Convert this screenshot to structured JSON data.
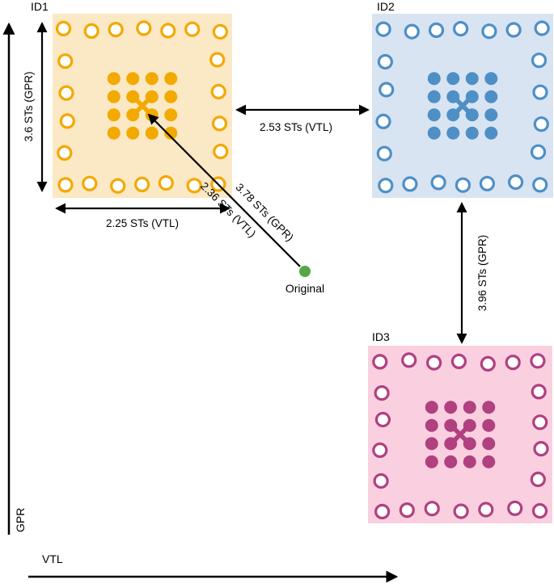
{
  "figure": {
    "axes": {
      "x_label": "VTL",
      "y_label": "GPR"
    },
    "clusters": [
      {
        "label": "ID1",
        "color": "#F2A900",
        "bg": "#FBE8C4"
      },
      {
        "label": "ID2",
        "color": "#4E8FC6",
        "bg": "#D8E4F1"
      },
      {
        "label": "ID3",
        "color": "#B04080",
        "bg": "#FAD0E0"
      }
    ],
    "original": {
      "label": "Original",
      "color": "#55A845"
    },
    "distances": {
      "id1_height": "3.6 STs (GPR)",
      "id1_width": "2.25 STs (VTL)",
      "id1_id2": "2.53 STs (VTL)",
      "id2_id3": "3.96 STs (GPR)",
      "original_id1_gpr": "3.78 STs (GPR)",
      "original_id1_vtl": "2.36 STs (VTL)"
    }
  }
}
